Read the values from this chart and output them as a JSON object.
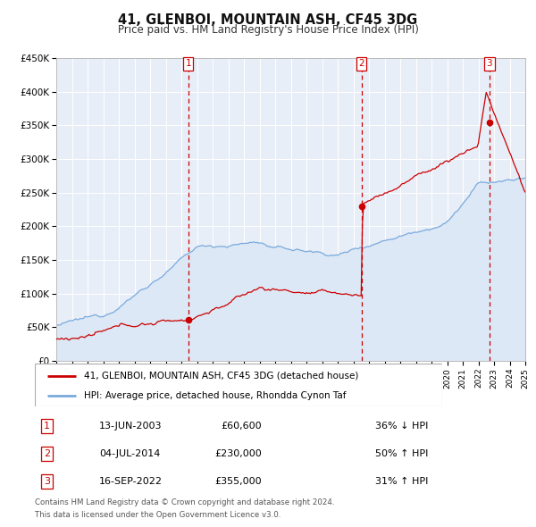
{
  "title": "41, GLENBOI, MOUNTAIN ASH, CF45 3DG",
  "subtitle": "Price paid vs. HM Land Registry's House Price Index (HPI)",
  "ylim": [
    0,
    450000
  ],
  "yticks": [
    0,
    50000,
    100000,
    150000,
    200000,
    250000,
    300000,
    350000,
    400000,
    450000
  ],
  "ytick_labels": [
    "£0",
    "£50K",
    "£100K",
    "£150K",
    "£200K",
    "£250K",
    "£300K",
    "£350K",
    "£400K",
    "£450K"
  ],
  "x_start_year": 1995,
  "x_end_year": 2025,
  "red_line_color": "#cc0000",
  "blue_line_color": "#7aaadd",
  "blue_fill_color": "#dce8f5",
  "chart_bg_color": "#e8eef8",
  "grid_color": "#ffffff",
  "sale_markers": [
    {
      "date_year": 2003.45,
      "price": 60600,
      "label": "1"
    },
    {
      "date_year": 2014.52,
      "price": 230000,
      "label": "2"
    },
    {
      "date_year": 2022.71,
      "price": 355000,
      "label": "3"
    }
  ],
  "legend_entries": [
    {
      "label": "41, GLENBOI, MOUNTAIN ASH, CF45 3DG (detached house)",
      "color": "#cc0000"
    },
    {
      "label": "HPI: Average price, detached house, Rhondda Cynon Taf",
      "color": "#7aaadd"
    }
  ],
  "table_rows": [
    {
      "num": "1",
      "date": "13-JUN-2003",
      "price": "£60,600",
      "change": "36% ↓ HPI"
    },
    {
      "num": "2",
      "date": "04-JUL-2014",
      "price": "£230,000",
      "change": "50% ↑ HPI"
    },
    {
      "num": "3",
      "date": "16-SEP-2022",
      "price": "£355,000",
      "change": "31% ↑ HPI"
    }
  ],
  "footnote1": "Contains HM Land Registry data © Crown copyright and database right 2024.",
  "footnote2": "This data is licensed under the Open Government Licence v3.0."
}
